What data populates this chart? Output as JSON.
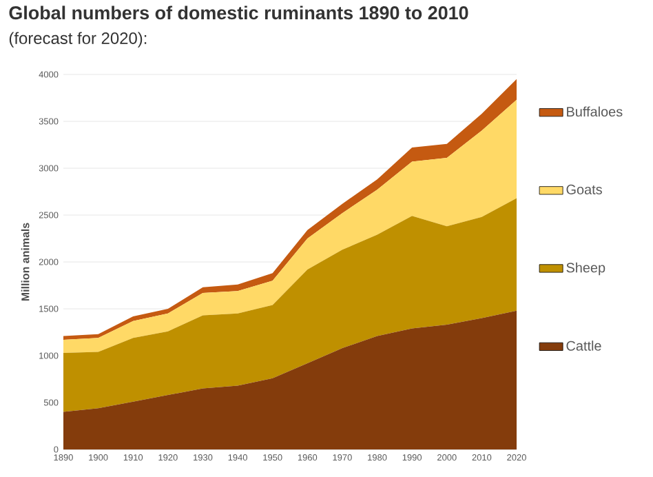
{
  "chart_data": {
    "type": "area",
    "title": "Global numbers of domestic ruminants 1890 to 2010",
    "subtitle": "(forecast for 2020):",
    "ylabel": "Million animals",
    "stacked": true,
    "legend": "right",
    "grid": "y",
    "x": [
      1890,
      1900,
      1910,
      1920,
      1930,
      1940,
      1950,
      1960,
      1970,
      1980,
      1990,
      2000,
      2010,
      2020
    ],
    "xlim": [
      1890,
      2020
    ],
    "xticks": [
      1890,
      1900,
      1910,
      1920,
      1930,
      1940,
      1950,
      1960,
      1970,
      1980,
      1990,
      2000,
      2010,
      2020
    ],
    "ylim": [
      0,
      4000
    ],
    "yticks": [
      0,
      500,
      1000,
      1500,
      2000,
      2500,
      3000,
      3500,
      4000
    ],
    "series": [
      {
        "name": "Cattle",
        "color": "#843c0c",
        "values": [
          400,
          440,
          510,
          580,
          650,
          680,
          760,
          920,
          1080,
          1210,
          1290,
          1330,
          1400,
          1480
        ]
      },
      {
        "name": "Sheep",
        "color": "#bf9000",
        "values": [
          630,
          600,
          680,
          680,
          780,
          770,
          780,
          1000,
          1050,
          1080,
          1200,
          1050,
          1080,
          1200
        ]
      },
      {
        "name": "Goats",
        "color": "#ffd966",
        "values": [
          140,
          150,
          180,
          190,
          240,
          240,
          260,
          330,
          390,
          480,
          580,
          730,
          920,
          1050
        ]
      },
      {
        "name": "Buffaloes",
        "color": "#c55a11",
        "values": [
          40,
          40,
          50,
          50,
          60,
          70,
          80,
          90,
          100,
          110,
          150,
          150,
          180,
          220
        ]
      }
    ]
  }
}
